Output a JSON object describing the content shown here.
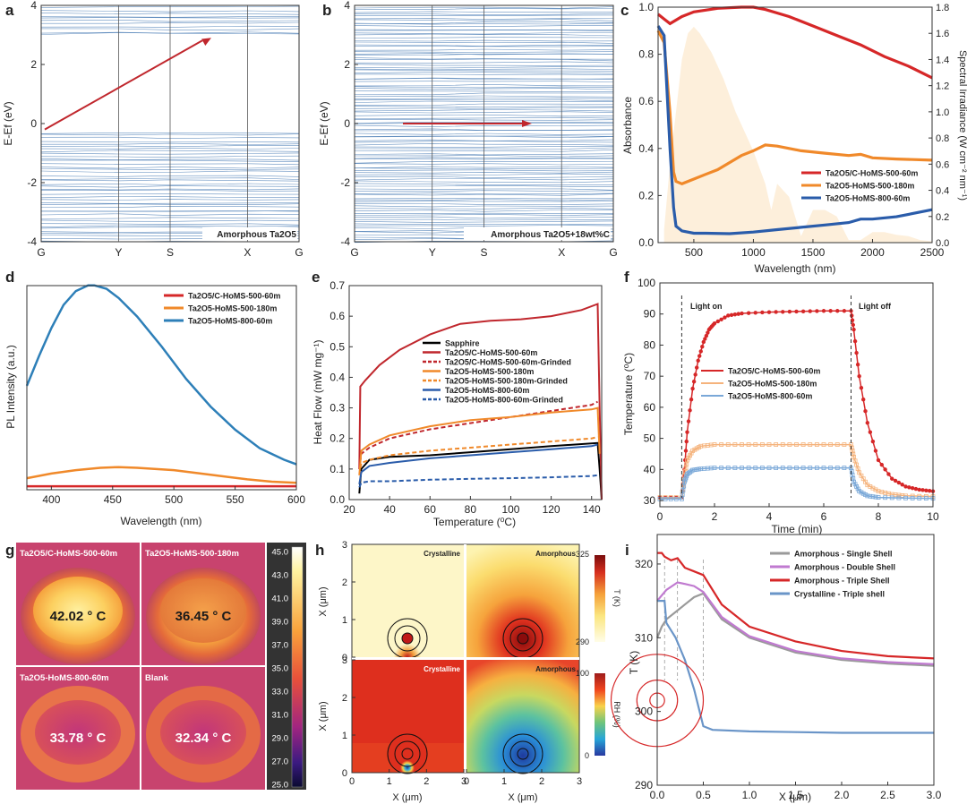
{
  "panel_letters": [
    "a",
    "b",
    "c",
    "d",
    "e",
    "f",
    "g",
    "h",
    "i"
  ],
  "chart_data": [
    {
      "id": "a",
      "type": "line",
      "title": "Amorphous Ta2O5",
      "ylabel": "E-Ef (eV)",
      "ylim": [
        -4,
        4
      ],
      "yticks": [
        "-4",
        "-2",
        "0",
        "2",
        "4"
      ],
      "kpoints": [
        "G",
        "Y",
        "S",
        "X",
        "G"
      ],
      "valence_band_range_ev": [
        -4,
        -0.3
      ],
      "conduction_band_range_ev": [
        2.95,
        4
      ],
      "arrow_ev": {
        "from": -0.2,
        "to": 2.9
      }
    },
    {
      "id": "b",
      "type": "line",
      "title": "Amorphous Ta2O5+18wt%C",
      "ylabel": "E-Ef (eV)",
      "ylim": [
        -4,
        4
      ],
      "yticks": [
        "-4",
        "-2",
        "0",
        "2",
        "4"
      ],
      "kpoints": [
        "G",
        "Y",
        "S",
        "X",
        "G"
      ],
      "arrow_ev": {
        "from": 0,
        "to": 0
      }
    },
    {
      "id": "c",
      "type": "line",
      "xlabel": "Wavelength (nm)",
      "ylabel": "Absorbance",
      "y2label": "Spectral Irradiance (W cm⁻² nm⁻¹)",
      "xlim": [
        200,
        2500
      ],
      "ylim": [
        0,
        1.0
      ],
      "y2lim": [
        0,
        1.8
      ],
      "xticks": [
        "500",
        "1000",
        "1500",
        "2000",
        "2500"
      ],
      "yticks": [
        "0.0",
        "0.2",
        "0.4",
        "0.6",
        "0.8",
        "1.0"
      ],
      "y2ticks": [
        "0.0",
        "0.2",
        "0.4",
        "0.6",
        "0.8",
        "1.0",
        "1.2",
        "1.4",
        "1.6",
        "1.8"
      ],
      "series": [
        {
          "name": "Ta2O5/C-HoMS-500-60m",
          "color": "#d62728",
          "x": [
            200,
            250,
            300,
            400,
            500,
            700,
            900,
            1000,
            1100,
            1300,
            1500,
            1700,
            1900,
            2100,
            2300,
            2500
          ],
          "y": [
            0.97,
            0.95,
            0.93,
            0.96,
            0.98,
            0.995,
            1.0,
            1.0,
            0.99,
            0.96,
            0.92,
            0.88,
            0.84,
            0.79,
            0.75,
            0.7
          ]
        },
        {
          "name": "Ta2O5-HoMS-500-180m",
          "color": "#f0892a",
          "x": [
            200,
            250,
            300,
            330,
            350,
            400,
            500,
            600,
            700,
            800,
            900,
            1000,
            1100,
            1200,
            1400,
            1600,
            1800,
            1900,
            2000,
            2200,
            2500
          ],
          "y": [
            0.9,
            0.85,
            0.55,
            0.3,
            0.26,
            0.25,
            0.27,
            0.29,
            0.31,
            0.34,
            0.37,
            0.39,
            0.415,
            0.41,
            0.39,
            0.38,
            0.37,
            0.375,
            0.36,
            0.355,
            0.35
          ]
        },
        {
          "name": "Ta2O5-HoMS-800-60m",
          "color": "#2a5caa",
          "x": [
            200,
            250,
            300,
            330,
            350,
            400,
            500,
            600,
            800,
            1000,
            1200,
            1400,
            1600,
            1800,
            1900,
            2000,
            2200,
            2500
          ],
          "y": [
            0.92,
            0.88,
            0.4,
            0.15,
            0.07,
            0.05,
            0.04,
            0.04,
            0.038,
            0.045,
            0.055,
            0.065,
            0.075,
            0.085,
            0.1,
            0.1,
            0.11,
            0.14
          ]
        }
      ],
      "background": {
        "name": "Solar spectrum",
        "x": [
          250,
          300,
          350,
          400,
          450,
          500,
          550,
          650,
          750,
          850,
          950,
          1000,
          1100,
          1150,
          1200,
          1300,
          1400,
          1500,
          1600,
          1700,
          1800,
          1900,
          2000,
          2100,
          2200,
          2300,
          2400,
          2500
        ],
        "y": [
          0.1,
          0.6,
          1.0,
          1.4,
          1.6,
          1.65,
          1.6,
          1.45,
          1.25,
          1.0,
          0.8,
          0.7,
          0.45,
          0.25,
          0.45,
          0.35,
          0.05,
          0.25,
          0.25,
          0.2,
          0.02,
          0.02,
          0.08,
          0.08,
          0.06,
          0.05,
          0.02,
          0.01
        ]
      }
    },
    {
      "id": "d",
      "type": "line",
      "xlabel": "Wavelength (nm)",
      "ylabel": "PL Intensity (a.u.)",
      "xlim": [
        380,
        600
      ],
      "ylim": [
        0,
        1.0
      ],
      "xticks": [
        "400",
        "450",
        "500",
        "550",
        "600"
      ],
      "series": [
        {
          "name": "Ta2O5/C-HoMS-500-60m",
          "color": "#d62728",
          "x": [
            380,
            420,
            460,
            500,
            540,
            580,
            600
          ],
          "y": [
            0.015,
            0.015,
            0.015,
            0.015,
            0.015,
            0.015,
            0.015
          ]
        },
        {
          "name": "Ta2O5-HoMS-500-180m",
          "color": "#f0892a",
          "x": [
            380,
            400,
            420,
            440,
            455,
            470,
            500,
            530,
            560,
            580,
            600
          ],
          "y": [
            0.05,
            0.07,
            0.085,
            0.095,
            0.098,
            0.095,
            0.085,
            0.065,
            0.045,
            0.035,
            0.03
          ]
        },
        {
          "name": "Ta2O5-HoMS-800-60m",
          "color": "#2d7fb8",
          "x": [
            380,
            390,
            400,
            410,
            420,
            430,
            435,
            445,
            455,
            470,
            490,
            510,
            530,
            550,
            570,
            590,
            600
          ],
          "y": [
            0.45,
            0.58,
            0.7,
            0.8,
            0.86,
            0.885,
            0.885,
            0.87,
            0.83,
            0.75,
            0.62,
            0.48,
            0.36,
            0.26,
            0.18,
            0.13,
            0.11
          ]
        }
      ]
    },
    {
      "id": "e",
      "type": "line",
      "xlabel": "Temperature (⁰C)",
      "ylabel": "Heat Flow (mW mg⁻¹)",
      "xlim": [
        20,
        145
      ],
      "ylim": [
        0,
        0.7
      ],
      "xticks": [
        "20",
        "40",
        "60",
        "80",
        "100",
        "120",
        "140"
      ],
      "yticks": [
        "0.0",
        "0.1",
        "0.2",
        "0.3",
        "0.4",
        "0.5",
        "0.6",
        "0.7"
      ],
      "series": [
        {
          "name": "Sapphire",
          "color": "#000000",
          "dash": false,
          "x": [
            25,
            26,
            30,
            40,
            60,
            80,
            100,
            120,
            143,
            144,
            145
          ],
          "y": [
            0.02,
            0.1,
            0.13,
            0.14,
            0.145,
            0.155,
            0.165,
            0.175,
            0.185,
            0.1,
            0.0
          ]
        },
        {
          "name": "Ta2O5/C-HoMS-500-60m",
          "color": "#c0272d",
          "dash": false,
          "x": [
            25,
            25.5,
            28,
            35,
            45,
            60,
            75,
            90,
            105,
            120,
            135,
            143,
            144,
            145
          ],
          "y": [
            0.1,
            0.37,
            0.39,
            0.44,
            0.49,
            0.54,
            0.575,
            0.585,
            0.59,
            0.6,
            0.62,
            0.64,
            0.3,
            0.0
          ]
        },
        {
          "name": "Ta2O5/C-HoMS-500-60m-Grinded",
          "color": "#c0272d",
          "dash": true,
          "x": [
            25,
            26,
            30,
            40,
            60,
            80,
            100,
            120,
            140,
            143
          ],
          "y": [
            0.1,
            0.15,
            0.17,
            0.2,
            0.23,
            0.25,
            0.27,
            0.29,
            0.31,
            0.32
          ]
        },
        {
          "name": "Ta2O5-HoMS-500-180m",
          "color": "#f0892a",
          "dash": false,
          "x": [
            25,
            26,
            30,
            40,
            60,
            80,
            100,
            120,
            140,
            143,
            144
          ],
          "y": [
            0.08,
            0.16,
            0.18,
            0.21,
            0.24,
            0.26,
            0.27,
            0.285,
            0.295,
            0.3,
            0.15
          ]
        },
        {
          "name": "Ta2O5-HoMS-500-180m-Grinded",
          "color": "#f0892a",
          "dash": true,
          "x": [
            25,
            26,
            30,
            40,
            60,
            80,
            100,
            120,
            140,
            143
          ],
          "y": [
            0.08,
            0.12,
            0.13,
            0.145,
            0.16,
            0.17,
            0.18,
            0.19,
            0.2,
            0.205
          ]
        },
        {
          "name": "Ta2O5-HoMS-800-60m",
          "color": "#2a5caa",
          "dash": false,
          "x": [
            25,
            26,
            30,
            40,
            60,
            80,
            100,
            120,
            140,
            143
          ],
          "y": [
            0.05,
            0.09,
            0.11,
            0.12,
            0.135,
            0.145,
            0.155,
            0.165,
            0.175,
            0.18
          ]
        },
        {
          "name": "Ta2O5-HoMS-800-60m-Grinded",
          "color": "#2a5caa",
          "dash": true,
          "x": [
            25,
            26,
            30,
            40,
            60,
            80,
            100,
            120,
            140,
            143
          ],
          "y": [
            0.04,
            0.055,
            0.06,
            0.06,
            0.065,
            0.068,
            0.07,
            0.073,
            0.077,
            0.08
          ]
        }
      ]
    },
    {
      "id": "f",
      "type": "line",
      "xlabel": "Time (min)",
      "ylabel": "Temperature (⁰C)",
      "xlim": [
        0,
        10
      ],
      "ylim": [
        28,
        100
      ],
      "xticks": [
        "0",
        "2",
        "4",
        "6",
        "8",
        "10"
      ],
      "yticks": [
        "30",
        "40",
        "50",
        "60",
        "70",
        "80",
        "90",
        "100"
      ],
      "annotations": {
        "light_on": "Light on",
        "light_off": "Light off"
      },
      "light_times_min": [
        0.8,
        7.0
      ],
      "series": [
        {
          "name": "Ta2O5/C-HoMS-500-60m",
          "color": "#d62728",
          "x": [
            0,
            0.8,
            0.9,
            1.0,
            1.2,
            1.4,
            1.6,
            1.8,
            2,
            2.5,
            3,
            4,
            5,
            6,
            7,
            7.1,
            7.3,
            7.6,
            8,
            8.5,
            9,
            9.5,
            10
          ],
          "y": [
            31,
            31,
            40,
            52,
            66,
            75,
            81,
            85,
            87,
            89.5,
            90.2,
            90.6,
            90.8,
            91,
            91,
            85,
            70,
            55,
            43,
            37,
            34.5,
            33.5,
            33
          ]
        },
        {
          "name": "Ta2O5-HoMS-500-180m",
          "color": "#f5b37c",
          "x": [
            0,
            0.8,
            0.9,
            1.0,
            1.2,
            1.5,
            2,
            3,
            4,
            5,
            6,
            7,
            7.1,
            7.3,
            7.6,
            8,
            8.5,
            9,
            10
          ],
          "y": [
            31,
            31,
            38,
            43,
            46,
            47.5,
            48,
            48,
            48,
            48,
            48,
            48,
            44,
            39,
            35,
            33,
            32,
            31.5,
            31.3
          ]
        },
        {
          "name": "Ta2O5-HoMS-800-60m",
          "color": "#7aa8d8",
          "x": [
            0,
            0.8,
            0.9,
            1.0,
            1.2,
            1.5,
            2,
            3,
            4,
            5,
            6,
            7,
            7.1,
            7.3,
            7.6,
            8,
            9,
            10
          ],
          "y": [
            30.5,
            30.5,
            36,
            38.5,
            39.8,
            40.2,
            40.5,
            40.5,
            40.5,
            40.5,
            40.5,
            40.5,
            36,
            33,
            31.5,
            31,
            30.8,
            30.7
          ]
        }
      ]
    },
    {
      "id": "g",
      "type": "heatmap",
      "images": [
        {
          "label": "Ta2O5/C-HoMS-500-60m",
          "temp": "42.02 ° C"
        },
        {
          "label": "Ta2O5-HoMS-500-180m",
          "temp": "36.45 ° C"
        },
        {
          "label": "Ta2O5-HoMS-800-60m",
          "temp": "33.78 ° C"
        },
        {
          "label": "Blank",
          "temp": "32.34 ° C"
        }
      ],
      "colorbar_ticks": [
        "45.0",
        "43.0",
        "41.0",
        "39.0",
        "37.0",
        "35.0",
        "33.0",
        "31.0",
        "29.0",
        "27.0",
        "25.0"
      ]
    },
    {
      "id": "h",
      "type": "heatmap",
      "xlabel": "X (μm)",
      "ylabel": "X (μm)",
      "xticks": [
        "0",
        "1",
        "2",
        "3"
      ],
      "yticks": [
        "0",
        "1",
        "2",
        "3"
      ],
      "panels": [
        {
          "title": "Crystalline",
          "quantity": "T"
        },
        {
          "title": "Amorphous",
          "quantity": "T"
        },
        {
          "title": "Crystalline",
          "quantity": "RH"
        },
        {
          "title": "Amorphous",
          "quantity": "RH"
        }
      ],
      "colorbar_T": {
        "label": "T (K)",
        "min": "290",
        "max": "325"
      },
      "colorbar_RH": {
        "label": "RH (%)",
        "min": "0",
        "max": "100"
      }
    },
    {
      "id": "i",
      "type": "line",
      "xlabel": "X (μm)",
      "ylabel": "T (K)",
      "xlim": [
        0,
        3.0
      ],
      "ylim": [
        290,
        324
      ],
      "xticks": [
        "0.0",
        "0.5",
        "1.0",
        "1.5",
        "2.0",
        "2.5",
        "3.0"
      ],
      "yticks": [
        "290",
        "300",
        "310",
        "320"
      ],
      "shell_radii_um": [
        0.08,
        0.22,
        0.5
      ],
      "series": [
        {
          "name": "Amorphous - Single Shell",
          "color": "#9a9a9a",
          "x": [
            0,
            0.05,
            0.1,
            0.2,
            0.3,
            0.4,
            0.5,
            0.7,
            1.0,
            1.5,
            2.0,
            2.5,
            3.0
          ],
          "y": [
            310,
            311.5,
            312.5,
            313.5,
            314.5,
            315.5,
            316,
            312.5,
            310,
            308,
            307,
            306.5,
            306.2
          ]
        },
        {
          "name": "Amorphous - Double Shell",
          "color": "#c07ad0",
          "x": [
            0,
            0.1,
            0.22,
            0.3,
            0.4,
            0.5,
            0.7,
            1.0,
            1.5,
            2.0,
            2.5,
            3.0
          ],
          "y": [
            315,
            316.5,
            317.5,
            317.3,
            317,
            316.2,
            312.8,
            310.2,
            308.2,
            307.2,
            306.7,
            306.4
          ]
        },
        {
          "name": "Amorphous - Triple Shell",
          "color": "#d62728",
          "x": [
            0,
            0.05,
            0.08,
            0.15,
            0.22,
            0.3,
            0.4,
            0.5,
            0.7,
            1.0,
            1.5,
            2.0,
            2.5,
            3.0
          ],
          "y": [
            321.5,
            321.5,
            321,
            320.5,
            320.8,
            319.5,
            319,
            318.5,
            314.5,
            311.5,
            309.5,
            308.2,
            307.5,
            307.2
          ]
        },
        {
          "name": "Crystalline - Triple shell",
          "color": "#6a95c8",
          "x": [
            0,
            0.08,
            0.1,
            0.2,
            0.3,
            0.4,
            0.5,
            0.6,
            1.0,
            1.5,
            2.0,
            3.0
          ],
          "y": [
            315,
            315,
            312,
            310,
            307,
            303,
            298,
            297.5,
            297.3,
            297.2,
            297.1,
            297.1
          ]
        }
      ]
    }
  ]
}
